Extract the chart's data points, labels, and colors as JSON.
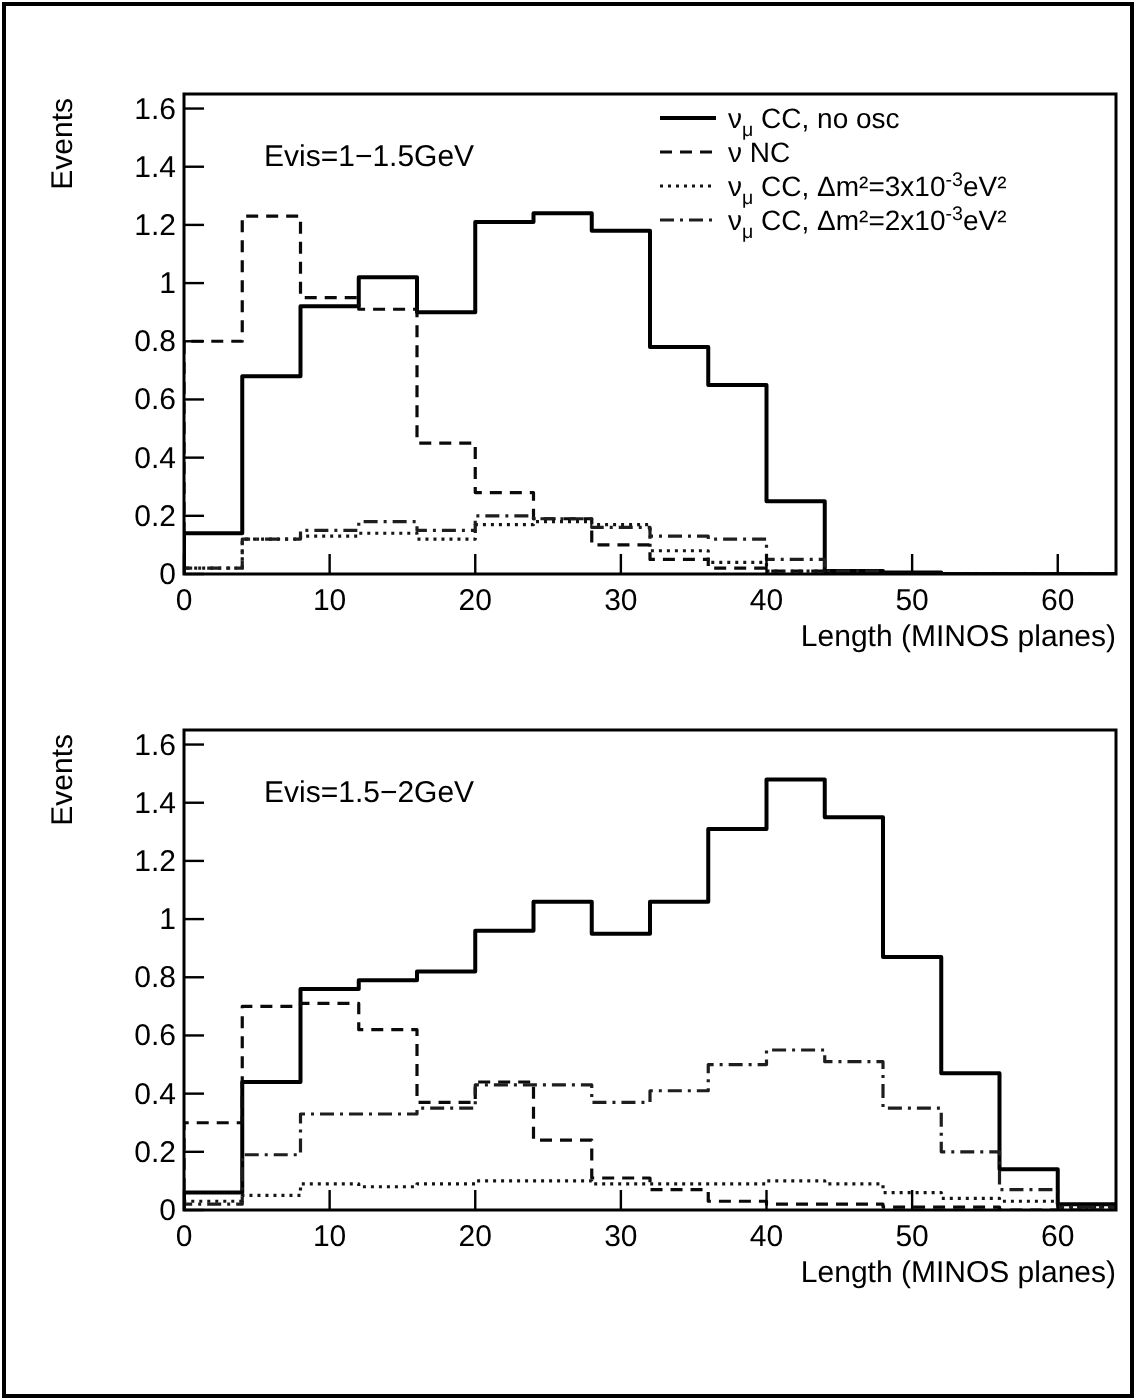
{
  "chart_data": [
    {
      "type": "histogram",
      "xlabel": "Length (MINOS planes)",
      "ylabel": "Events",
      "annotations": [
        "Evis=1−1.5GeV"
      ],
      "bins": [
        0,
        4,
        8,
        12,
        16,
        20,
        24,
        28,
        32,
        36,
        40,
        44,
        48,
        52,
        56,
        60,
        64
      ],
      "xlim": [
        0,
        64
      ],
      "ylim": [
        0,
        1.65
      ],
      "xticks": [
        0,
        10,
        20,
        30,
        40,
        50,
        60
      ],
      "yticks": [
        0,
        0.2,
        0.4,
        0.6,
        0.8,
        1,
        1.2,
        1.4,
        1.6
      ],
      "legend": "top right",
      "grid": false,
      "series": [
        {
          "name": "ν$_{μ}$ CC, no osc",
          "color": "#000000",
          "line_style": "solid",
          "values": [
            0.14,
            0.68,
            0.92,
            1.02,
            0.9,
            1.21,
            1.24,
            1.18,
            0.78,
            0.65,
            0.25,
            0.01,
            0.005,
            0,
            0,
            0
          ]
        },
        {
          "name": "ν NC",
          "color": "#0a0a0a",
          "line_style": "dashed",
          "values": [
            0.8,
            1.23,
            0.95,
            0.91,
            0.45,
            0.28,
            0.19,
            0.1,
            0.05,
            0.02,
            0.01,
            0,
            0,
            0,
            0,
            0
          ]
        },
        {
          "name": "ν$_{μ}$ CC, Δm²=3x10$^{-3}$eV²",
          "color": "#141414",
          "line_style": "dotted",
          "values": [
            0.02,
            0.12,
            0.13,
            0.14,
            0.12,
            0.17,
            0.18,
            0.17,
            0.08,
            0.04,
            0.01,
            0,
            0,
            0,
            0,
            0
          ]
        },
        {
          "name": "ν$_{μ}$ CC, Δm²=2x10$^{-3}$eV²",
          "color": "#1e1e1e",
          "line_style": "dashdot",
          "values": [
            0.02,
            0.12,
            0.15,
            0.18,
            0.15,
            0.2,
            0.19,
            0.16,
            0.13,
            0.12,
            0.05,
            0.01,
            0,
            0,
            0,
            0
          ]
        }
      ]
    },
    {
      "type": "histogram",
      "xlabel": "Length (MINOS planes)",
      "ylabel": "Events",
      "annotations": [
        "Evis=1.5−2GeV"
      ],
      "bins": [
        0,
        4,
        8,
        12,
        16,
        20,
        24,
        28,
        32,
        36,
        40,
        44,
        48,
        52,
        56,
        60,
        64
      ],
      "xlim": [
        0,
        64
      ],
      "ylim": [
        0,
        1.65
      ],
      "xticks": [
        0,
        10,
        20,
        30,
        40,
        50,
        60
      ],
      "yticks": [
        0,
        0.2,
        0.4,
        0.6,
        0.8,
        1,
        1.2,
        1.4,
        1.6
      ],
      "grid": false,
      "series": [
        {
          "color": "#000000",
          "line_style": "solid",
          "values": [
            0.06,
            0.44,
            0.76,
            0.79,
            0.82,
            0.96,
            1.06,
            0.95,
            1.06,
            1.31,
            1.48,
            1.35,
            0.87,
            0.47,
            0.14,
            0.02
          ]
        },
        {
          "color": "#0a0a0a",
          "line_style": "dashed",
          "values": [
            0.3,
            0.7,
            0.71,
            0.62,
            0.37,
            0.44,
            0.24,
            0.11,
            0.07,
            0.03,
            0.02,
            0.02,
            0.01,
            0.01,
            0,
            0
          ]
        },
        {
          "color": "#141414",
          "line_style": "dotted",
          "values": [
            0.03,
            0.05,
            0.09,
            0.08,
            0.09,
            0.1,
            0.1,
            0.09,
            0.09,
            0.09,
            0.1,
            0.09,
            0.06,
            0.04,
            0.03,
            0.01
          ]
        },
        {
          "color": "#1e1e1e",
          "line_style": "dashdot",
          "values": [
            0.02,
            0.19,
            0.33,
            0.33,
            0.35,
            0.43,
            0.43,
            0.37,
            0.41,
            0.5,
            0.55,
            0.51,
            0.35,
            0.2,
            0.07,
            0.01
          ]
        }
      ]
    }
  ]
}
